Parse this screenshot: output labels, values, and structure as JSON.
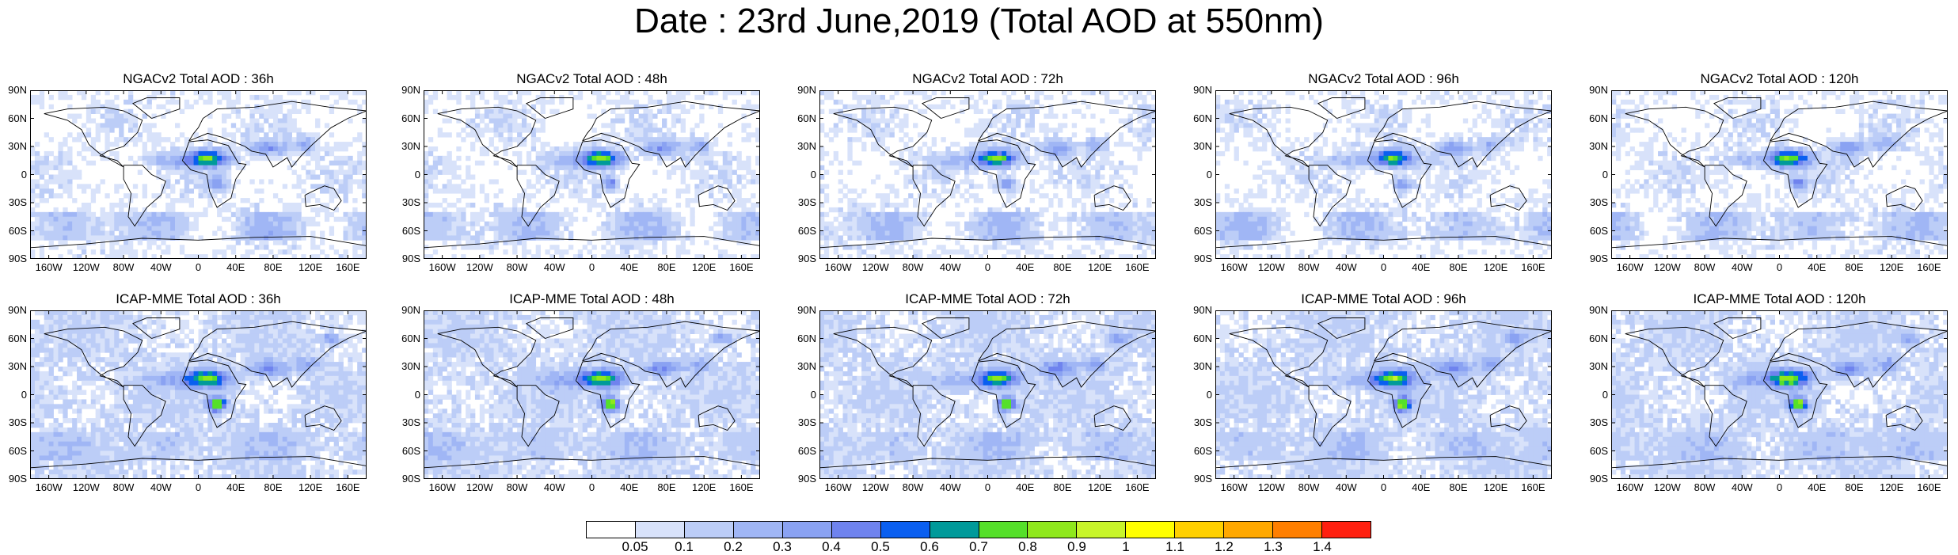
{
  "title": "Date : 23rd June,2019 (Total AOD at 550nm)",
  "panels": [
    {
      "title": "NGACv2 Total AOD : 36h",
      "model": "ngac"
    },
    {
      "title": "NGACv2 Total AOD : 48h",
      "model": "ngac"
    },
    {
      "title": "NGACv2 Total AOD : 72h",
      "model": "ngac"
    },
    {
      "title": "NGACv2 Total AOD : 96h",
      "model": "ngac"
    },
    {
      "title": "NGACv2 Total AOD : 120h",
      "model": "ngac"
    },
    {
      "title": "ICAP-MME Total AOD : 36h",
      "model": "icap"
    },
    {
      "title": "ICAP-MME Total AOD : 48h",
      "model": "icap"
    },
    {
      "title": "ICAP-MME Total AOD : 72h",
      "model": "icap"
    },
    {
      "title": "ICAP-MME Total AOD : 96h",
      "model": "icap"
    },
    {
      "title": "ICAP-MME Total AOD : 120h",
      "model": "icap"
    }
  ],
  "lat_ticks": [
    "90N",
    "60N",
    "30N",
    "0",
    "30S",
    "60S",
    "90S"
  ],
  "lon_ticks": [
    "160W",
    "120W",
    "80W",
    "40W",
    "0",
    "40E",
    "80E",
    "120E",
    "160E"
  ],
  "lat_values": [
    90,
    60,
    30,
    0,
    -30,
    -60,
    -90
  ],
  "lon_values": [
    -160,
    -120,
    -80,
    -40,
    0,
    40,
    80,
    120,
    160
  ],
  "colorbar": {
    "colors": [
      "#ffffff",
      "#d8e2fa",
      "#bccdf7",
      "#a0b6f5",
      "#8aa2f2",
      "#6f83ee",
      "#0a5ff0",
      "#009a9a",
      "#55e02a",
      "#8fe81c",
      "#c8f52a",
      "#ffff00",
      "#ffd000",
      "#ffa800",
      "#ff7f00",
      "#ff2010"
    ],
    "labels": [
      "0.05",
      "0.1",
      "0.2",
      "0.3",
      "0.4",
      "0.5",
      "0.6",
      "0.7",
      "0.8",
      "0.9",
      "1",
      "1.1",
      "1.2",
      "1.3",
      "1.4"
    ]
  }
}
